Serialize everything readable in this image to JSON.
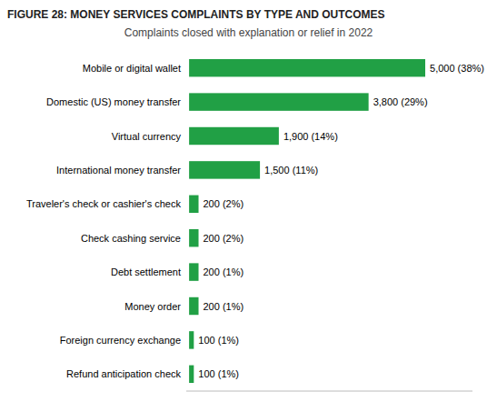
{
  "chart_data": {
    "type": "bar",
    "orientation": "horizontal",
    "title": "FIGURE 28: MONEY SERVICES COMPLAINTS BY TYPE AND OUTCOMES",
    "subtitle": "Complaints closed with explanation or relief in 2022",
    "categories": [
      "Mobile or digital wallet",
      "Domestic (US) money transfer",
      "Virtual currency",
      "International money transfer",
      "Traveler's check or cashier's check",
      "Check cashing service",
      "Debt settlement",
      "Money order",
      "Foreign currency exchange",
      "Refund anticipation check"
    ],
    "values": [
      5000,
      3800,
      1900,
      1500,
      200,
      200,
      200,
      200,
      100,
      100
    ],
    "value_labels": [
      "5,000 (38%)",
      "3,800 (29%)",
      "1,900 (14%)",
      "1,500 (11%)",
      "200 (2%)",
      "200 (2%)",
      "200 (1%)",
      "200 (1%)",
      "100 (1%)",
      "100 (1%)"
    ],
    "data_labels": true,
    "color": "#21a045",
    "xlim": [
      -60,
      6000
    ],
    "tick_labels": false,
    "grid": false
  }
}
